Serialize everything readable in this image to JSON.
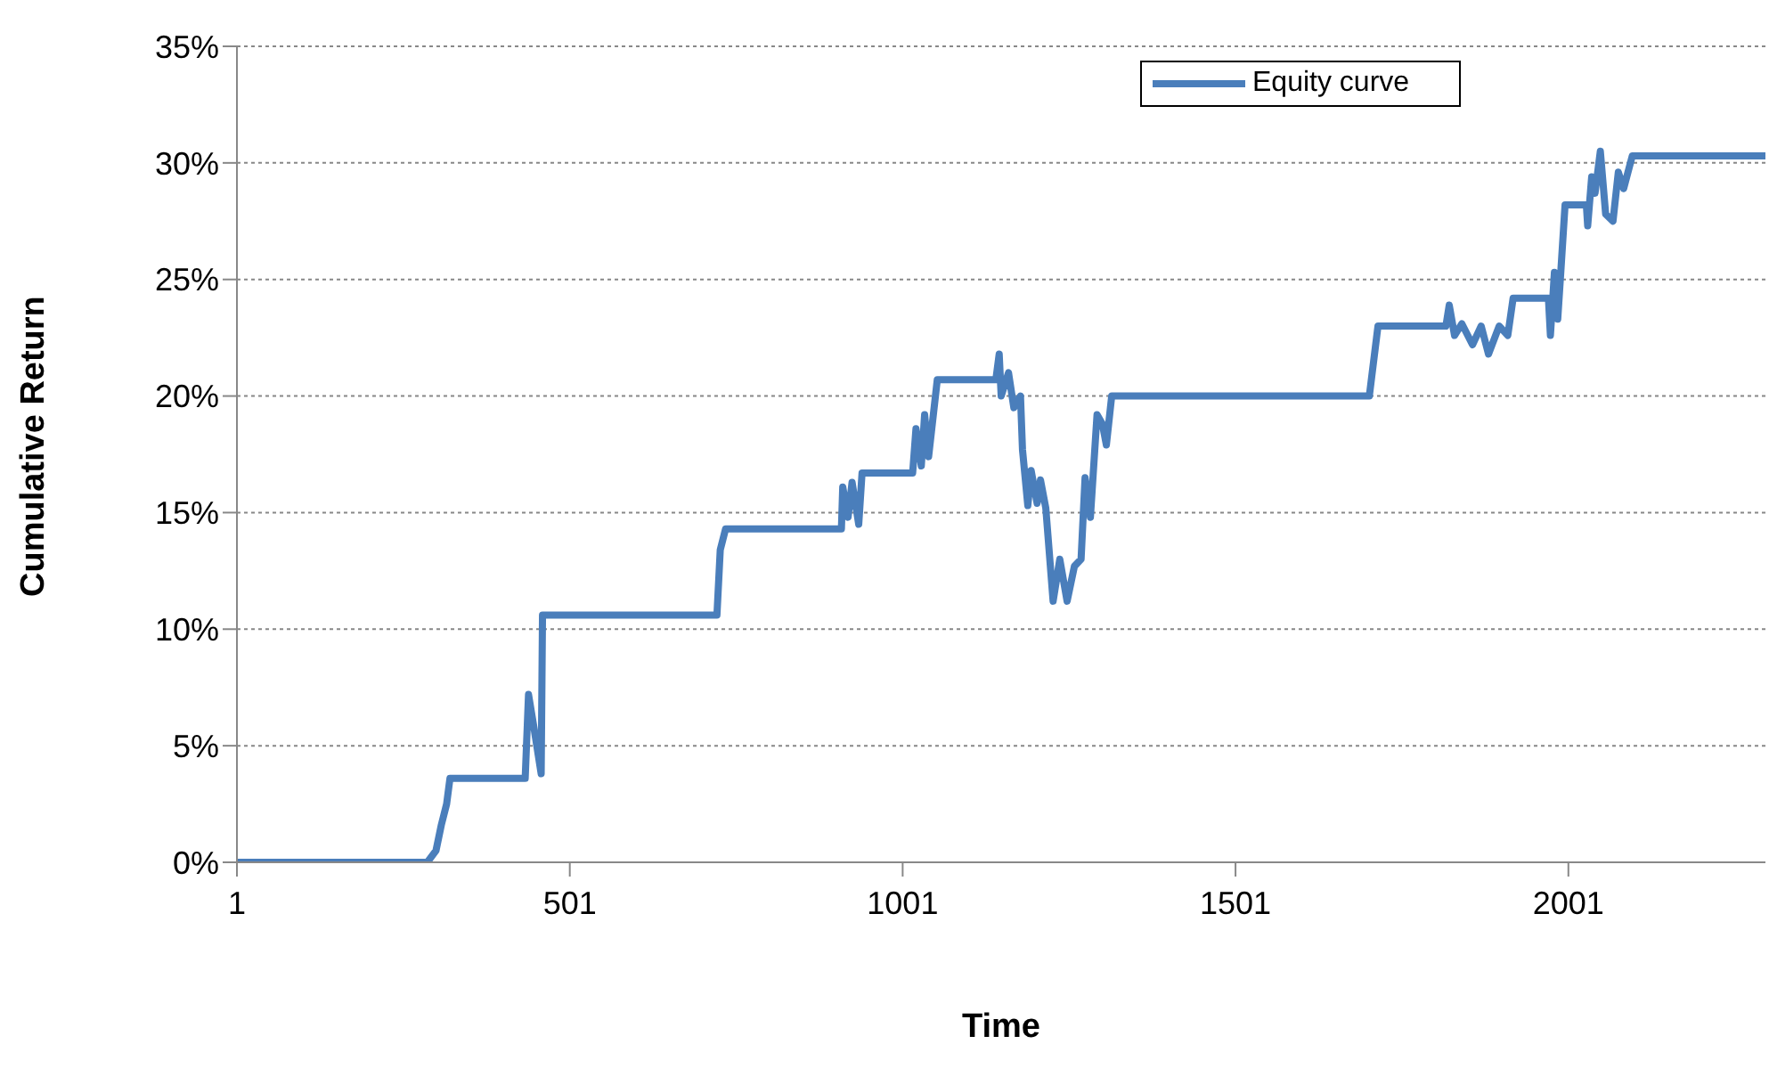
{
  "chart_data": {
    "type": "line",
    "xlabel": "Time",
    "ylabel": "Cumulative Return",
    "legend": "top right",
    "grid": "y",
    "marker": "none",
    "line_style": "solid",
    "xlim": [
      1,
      2297
    ],
    "xticks": [
      1,
      501,
      1001,
      1501,
      2001
    ],
    "ylim": [
      0,
      35
    ],
    "yticks": [
      {
        "value": 0,
        "label": "0%"
      },
      {
        "value": 5,
        "label": "5%"
      },
      {
        "value": 10,
        "label": "10%"
      },
      {
        "value": 15,
        "label": "15%"
      },
      {
        "value": 20,
        "label": "20%"
      },
      {
        "value": 25,
        "label": "25%"
      },
      {
        "value": 30,
        "label": "30%"
      },
      {
        "value": 35,
        "label": "35%"
      }
    ],
    "series": [
      {
        "name": "Equity curve",
        "color": "#4a7ebb",
        "x": [
          1,
          287,
          300,
          308,
          316,
          321,
          434,
          439,
          447,
          458,
          460,
          722,
          727,
          735,
          909,
          911,
          919,
          925,
          935,
          940,
          1016,
          1021,
          1029,
          1034,
          1040,
          1053,
          1141,
          1146,
          1149,
          1160,
          1168,
          1178,
          1181,
          1189,
          1194,
          1203,
          1208,
          1216,
          1227,
          1237,
          1248,
          1259,
          1269,
          1275,
          1283,
          1293,
          1301,
          1307,
          1315,
          1702,
          1715,
          1817,
          1822,
          1830,
          1841,
          1857,
          1870,
          1881,
          1897,
          1910,
          1918,
          1971,
          1974,
          1980,
          1985,
          1990,
          1996,
          2028,
          2030,
          2036,
          2041,
          2049,
          2057,
          2068,
          2076,
          2084,
          2097,
          2297
        ],
        "values": [
          0,
          0,
          0.5,
          1.6,
          2.5,
          3.6,
          3.6,
          7.2,
          5.8,
          3.8,
          10.6,
          10.6,
          13.4,
          14.3,
          14.3,
          16.1,
          14.8,
          16.3,
          14.5,
          16.7,
          16.7,
          18.6,
          17.0,
          19.2,
          17.4,
          20.7,
          20.7,
          21.8,
          20.0,
          21.0,
          19.5,
          20.0,
          17.7,
          15.3,
          16.8,
          15.4,
          16.4,
          15.2,
          11.2,
          13.0,
          11.2,
          12.7,
          13.0,
          16.5,
          14.8,
          19.2,
          18.8,
          17.9,
          20.0,
          20.0,
          23.0,
          23.0,
          23.9,
          22.6,
          23.1,
          22.2,
          23.0,
          21.8,
          23.0,
          22.6,
          24.2,
          24.2,
          22.6,
          25.3,
          23.3,
          25.5,
          28.2,
          28.2,
          27.3,
          29.4,
          28.7,
          30.5,
          27.8,
          27.5,
          29.6,
          28.9,
          30.3,
          30.3
        ]
      }
    ]
  }
}
